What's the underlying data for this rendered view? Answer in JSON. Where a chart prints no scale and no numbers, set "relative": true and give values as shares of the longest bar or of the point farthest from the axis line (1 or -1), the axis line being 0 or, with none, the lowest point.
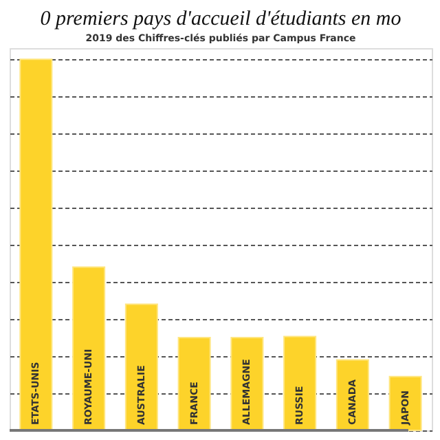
{
  "chart_data": {
    "type": "bar",
    "title": "0 premiers pays d'accueil d'étudiants en mo",
    "categories": [
      "ETATS-UNIS",
      "ROYAUME-UNI",
      "AUSTRALIE",
      "FRANCE",
      "ALLEMAGNE",
      "RUSSIE",
      "CANADA",
      "JAPON"
    ],
    "values": [
      1,
      0.44,
      0.34,
      0.25,
      0.25,
      0.253,
      0.19,
      0.145
    ],
    "color": "#fdd32a",
    "relative": true,
    "grid": "y",
    "annotations": [
      "2019 des Chiffres-clés publiés par Campus France"
    ]
  }
}
